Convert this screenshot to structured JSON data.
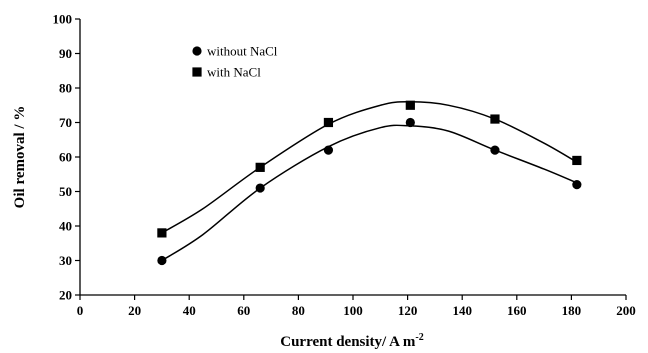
{
  "chart_data": {
    "type": "line",
    "xlabel": "Current density/  A m",
    "xlabel_superscript": "-2",
    "ylabel": "Oil removal / %",
    "xlim": [
      0,
      200
    ],
    "ylim": [
      20,
      100
    ],
    "x_ticks": [
      0,
      20,
      40,
      60,
      80,
      100,
      120,
      140,
      160,
      180,
      200
    ],
    "y_ticks": [
      20,
      30,
      40,
      50,
      60,
      70,
      80,
      90,
      100
    ],
    "grid": false,
    "legend_position": "top-left",
    "series": [
      {
        "name": "without NaCl",
        "marker": "circle",
        "x": [
          30,
          66,
          91,
          121,
          152,
          182
        ],
        "y": [
          30,
          51,
          62,
          70,
          62,
          52
        ],
        "fit": [
          [
            30,
            30
          ],
          [
            45,
            37.5
          ],
          [
            66,
            51
          ],
          [
            91,
            63
          ],
          [
            110,
            68.5
          ],
          [
            121,
            69
          ],
          [
            135,
            67.5
          ],
          [
            152,
            62
          ],
          [
            170,
            56.5
          ],
          [
            182,
            52.5
          ]
        ]
      },
      {
        "name": "with NaCl",
        "marker": "square",
        "x": [
          30,
          66,
          91,
          121,
          152,
          182
        ],
        "y": [
          38,
          57,
          70,
          75,
          71,
          59
        ],
        "fit": [
          [
            30,
            38
          ],
          [
            45,
            45
          ],
          [
            66,
            57
          ],
          [
            91,
            69.5
          ],
          [
            110,
            75
          ],
          [
            121,
            76
          ],
          [
            135,
            75
          ],
          [
            152,
            71
          ],
          [
            170,
            64
          ],
          [
            182,
            58.5
          ]
        ]
      }
    ]
  }
}
